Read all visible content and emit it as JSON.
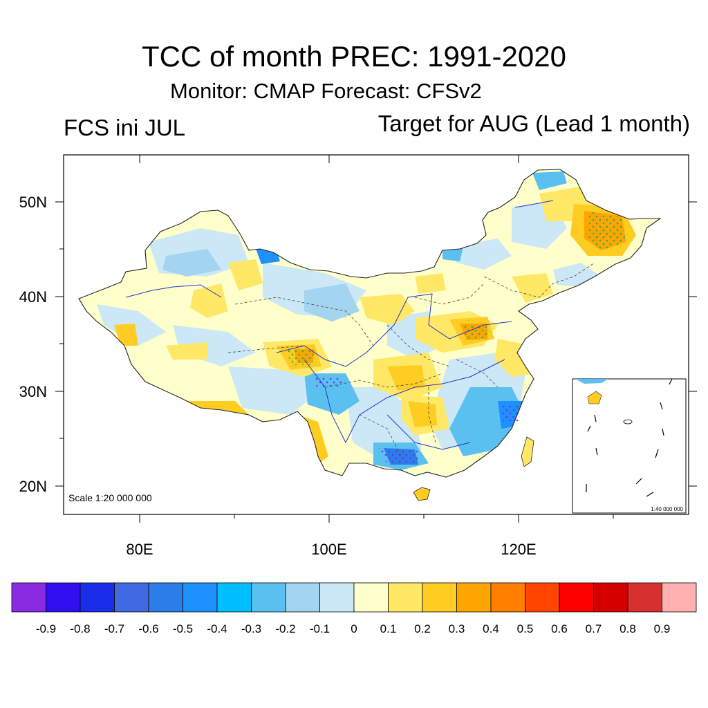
{
  "title": "TCC of month PREC: 1991-2020",
  "subtitle": "Monitor: CMAP   Forecast: CFSv2",
  "left_label": "FCS ini JUL",
  "right_label": "Target for AUG (Lead 1 month)",
  "scale_label": "Scale 1:20 000 000",
  "inset_scale_label": "1:40 000 000",
  "map": {
    "lon_range": [
      72,
      138
    ],
    "lat_range": [
      17,
      55
    ],
    "lon_ticks": [
      {
        "value": 80,
        "label": "80E"
      },
      {
        "value": 100,
        "label": "100E"
      },
      {
        "value": 120,
        "label": "120E"
      }
    ],
    "lat_ticks": [
      {
        "value": 50,
        "label": "50N"
      },
      {
        "value": 40,
        "label": "40N"
      },
      {
        "value": 30,
        "label": "30N"
      },
      {
        "value": 20,
        "label": "20N"
      }
    ]
  },
  "colorbar": {
    "colors": [
      "#8a2be2",
      "#3010f0",
      "#1a2de8",
      "#4169e1",
      "#2b7de9",
      "#1e90ff",
      "#00bfff",
      "#5ac0f0",
      "#a3d4f0",
      "#cce8f6",
      "#ffffcc",
      "#ffe866",
      "#ffcc22",
      "#ffa500",
      "#ff7f00",
      "#ff4500",
      "#ff0000",
      "#d70000",
      "#d73030",
      "#ffb0b0"
    ],
    "labels": [
      "-0.9",
      "-0.8",
      "-0.7",
      "-0.6",
      "-0.5",
      "-0.4",
      "-0.3",
      "-0.2",
      "-0.1",
      "0",
      "0.1",
      "0.2",
      "0.3",
      "0.4",
      "0.5",
      "0.6",
      "0.7",
      "0.8",
      "0.9"
    ]
  }
}
